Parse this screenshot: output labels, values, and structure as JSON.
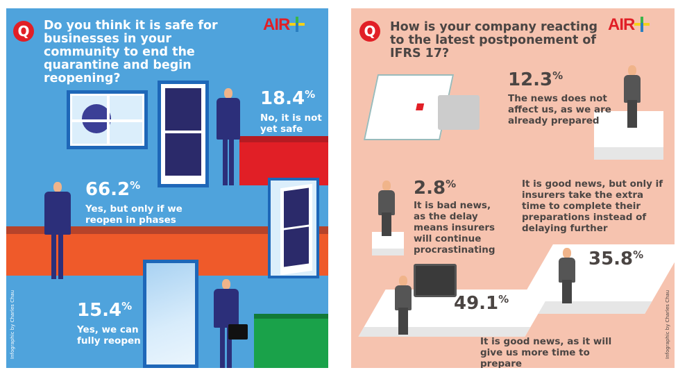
{
  "left": {
    "question": "Do you think it is safe for businesses in your community to end the quarantine and begin reopening?",
    "q_icon": "Q",
    "logo": "AIR+",
    "credit": "Infographic by Charles Chau",
    "answers": [
      {
        "percent": "18.4",
        "unit": "%",
        "label": "No, it is not yet safe",
        "color": "#e11f26"
      },
      {
        "percent": "66.2",
        "unit": "%",
        "label": "Yes, but only if we reopen in phases",
        "color": "#ef5a2a"
      },
      {
        "percent": "15.4",
        "unit": "%",
        "label": "Yes, we can fully reopen",
        "color": "#1aa24a"
      }
    ],
    "colors": {
      "background": "#4fa3dc",
      "suit": "#2c2f7a"
    }
  },
  "right": {
    "question": "How is your company reacting to the latest postponement of IFRS 17?",
    "q_icon": "Q",
    "logo": "AIR+",
    "credit": "Infographic by Charles Chau",
    "answers": [
      {
        "percent": "12.3",
        "unit": "%",
        "label": "The news does not affect us, as we are already prepared"
      },
      {
        "percent": "2.8",
        "unit": "%",
        "label": "It is bad news, as the delay means insurers will continue procrastinating"
      },
      {
        "percent": "35.8",
        "unit": "%",
        "label": "It is good news, but only if insurers take the extra time to complete their preparations instead of delaying further"
      },
      {
        "percent": "49.1",
        "unit": "%",
        "label": "It is good news, as it will give us more time to prepare"
      }
    ],
    "colors": {
      "background": "#f6c3af",
      "text": "#4b4543"
    }
  }
}
